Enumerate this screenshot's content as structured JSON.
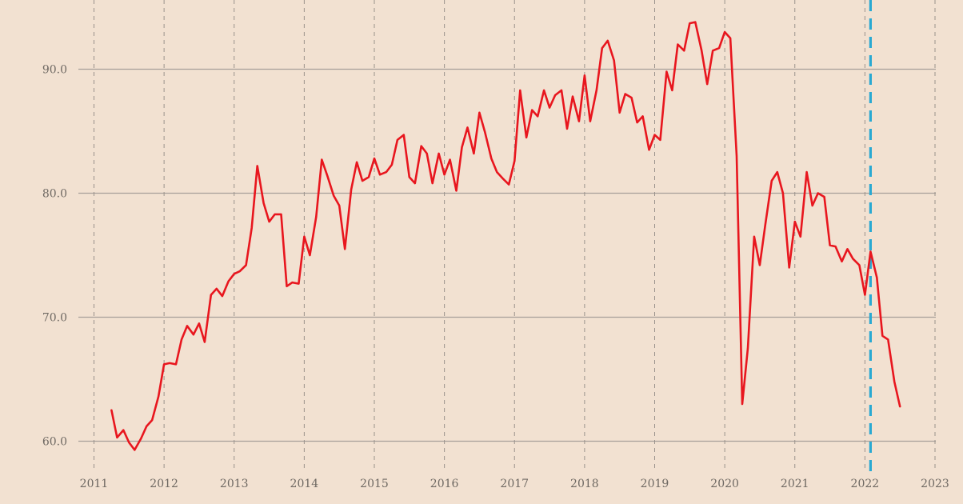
{
  "chart_data": {
    "type": "line",
    "title": "",
    "xlabel": "",
    "ylabel": "",
    "xlim": [
      2011.0,
      2023.0
    ],
    "ylim": [
      58.5,
      94.5
    ],
    "x_ticks": [
      "2011",
      "2012",
      "2013",
      "2014",
      "2015",
      "2016",
      "2017",
      "2018",
      "2019",
      "2020",
      "2021",
      "2022",
      "2023"
    ],
    "y_ticks": [
      "60.0",
      "70.0",
      "80.0",
      "90.0"
    ],
    "grid": {
      "horizontal": true,
      "vertical": "dashed"
    },
    "legend": "none",
    "series": [
      {
        "color": "#e8161e",
        "x": [
          2011.25,
          2011.33,
          2011.42,
          2011.5,
          2011.58,
          2011.67,
          2011.75,
          2011.83,
          2011.92,
          2012.0,
          2012.08,
          2012.17,
          2012.25,
          2012.33,
          2012.42,
          2012.5,
          2012.58,
          2012.67,
          2012.75,
          2012.83,
          2012.92,
          2013.0,
          2013.08,
          2013.17,
          2013.25,
          2013.33,
          2013.42,
          2013.5,
          2013.58,
          2013.67,
          2013.75,
          2013.83,
          2013.92,
          2014.0,
          2014.08,
          2014.17,
          2014.25,
          2014.33,
          2014.42,
          2014.5,
          2014.58,
          2014.67,
          2014.75,
          2014.83,
          2014.92,
          2015.0,
          2015.08,
          2015.17,
          2015.25,
          2015.33,
          2015.42,
          2015.5,
          2015.58,
          2015.67,
          2015.75,
          2015.83,
          2015.92,
          2016.0,
          2016.08,
          2016.17,
          2016.25,
          2016.33,
          2016.42,
          2016.5,
          2016.58,
          2016.67,
          2016.75,
          2016.83,
          2016.92,
          2017.0,
          2017.08,
          2017.17,
          2017.25,
          2017.33,
          2017.42,
          2017.5,
          2017.58,
          2017.67,
          2017.75,
          2017.83,
          2017.92,
          2018.0,
          2018.08,
          2018.17,
          2018.25,
          2018.33,
          2018.42,
          2018.5,
          2018.58,
          2018.67,
          2018.75,
          2018.83,
          2018.92,
          2019.0,
          2019.08,
          2019.17,
          2019.25,
          2019.33,
          2019.42,
          2019.5,
          2019.58,
          2019.67,
          2019.75,
          2019.83,
          2019.92,
          2020.0,
          2020.08,
          2020.17,
          2020.25,
          2020.33,
          2020.42,
          2020.5,
          2020.58,
          2020.67,
          2020.75,
          2020.83,
          2020.92,
          2021.0,
          2021.08,
          2021.17,
          2021.25,
          2021.33,
          2021.42,
          2021.5,
          2021.58,
          2021.67,
          2021.75,
          2021.83,
          2021.92,
          2022.0,
          2022.08,
          2022.17,
          2022.25,
          2022.33,
          2022.42,
          2022.5
        ],
        "y": [
          62.5,
          60.3,
          60.9,
          59.9,
          59.3,
          60.2,
          61.2,
          61.7,
          63.6,
          66.2,
          66.3,
          66.2,
          68.2,
          69.3,
          68.6,
          69.5,
          68.0,
          71.8,
          72.3,
          71.7,
          72.9,
          73.5,
          73.7,
          74.2,
          77.2,
          82.2,
          79.2,
          77.7,
          78.3,
          78.3,
          72.5,
          72.8,
          72.7,
          76.5,
          75.0,
          78.1,
          82.7,
          81.4,
          79.8,
          79.0,
          75.5,
          80.3,
          82.5,
          81.0,
          81.3,
          82.8,
          81.5,
          81.7,
          82.3,
          84.3,
          84.7,
          81.3,
          80.8,
          83.8,
          83.2,
          80.8,
          83.2,
          81.5,
          82.7,
          80.2,
          83.7,
          85.3,
          83.2,
          86.5,
          84.9,
          82.8,
          81.7,
          81.2,
          80.7,
          82.6,
          88.3,
          84.5,
          86.7,
          86.2,
          88.3,
          86.9,
          87.9,
          88.3,
          85.2,
          87.8,
          85.8,
          89.5,
          85.8,
          88.3,
          91.7,
          92.3,
          90.7,
          86.5,
          88.0,
          87.7,
          85.7,
          86.2,
          83.5,
          84.7,
          84.3,
          89.8,
          88.3,
          92.0,
          91.5,
          93.7,
          93.8,
          91.5,
          88.8,
          91.5,
          91.7,
          93.0,
          92.5,
          83.0,
          63.0,
          67.5,
          76.5,
          74.2,
          77.5,
          81.0,
          81.7,
          80.0,
          74.0,
          77.7,
          76.5,
          81.7,
          79.0,
          80.0,
          79.7,
          75.8,
          75.7,
          74.5,
          75.5,
          74.7,
          74.2,
          71.8,
          75.3,
          73.2,
          68.5,
          68.2,
          64.8,
          62.8
        ]
      }
    ],
    "annotations": [
      {
        "type": "vertical-line",
        "x": 2022.08,
        "style": "dashed",
        "color": "#2aa9d2"
      }
    ]
  }
}
